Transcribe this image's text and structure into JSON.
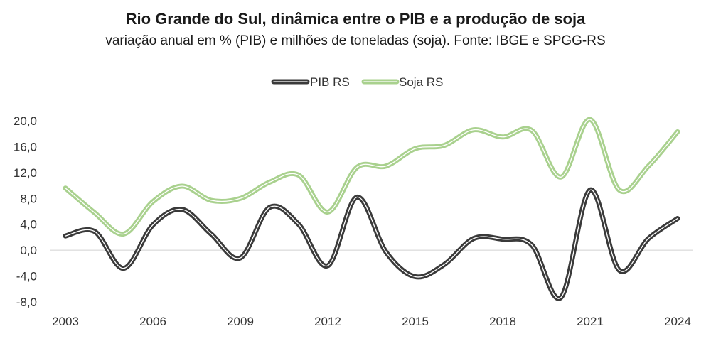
{
  "chart_data": {
    "type": "line",
    "title": "Rio Grande do Sul, dinâmica entre o PIB e a produção de soja",
    "subtitle": "variação anual em % (PIB) e milhões de toneladas (soja). Fonte: IBGE e SPGG-RS",
    "x": [
      2003,
      2004,
      2005,
      2006,
      2007,
      2008,
      2009,
      2010,
      2011,
      2012,
      2013,
      2014,
      2015,
      2016,
      2017,
      2018,
      2019,
      2020,
      2021,
      2022,
      2023,
      2024
    ],
    "x_ticks": [
      "2003",
      "2006",
      "2009",
      "2012",
      "2015",
      "2018",
      "2021",
      "2024"
    ],
    "y_ticks": [
      "20,0",
      "16,0",
      "12,0",
      "8,0",
      "4,0",
      "0,0",
      "-4,0",
      "-8,0"
    ],
    "ylim": [
      -8,
      20
    ],
    "legend_position": "top",
    "series": [
      {
        "name": "PIB RS",
        "color": "#3a3a3a",
        "values": [
          2.2,
          2.9,
          -2.8,
          3.9,
          6.3,
          2.5,
          -1.2,
          6.6,
          4.0,
          -2.4,
          8.2,
          -0.3,
          -4.1,
          -2.2,
          1.8,
          1.7,
          0.8,
          -7.3,
          9.3,
          -3.1,
          1.8,
          4.9
        ]
      },
      {
        "name": "Soja RS",
        "color": "#a9d18e",
        "values": [
          9.6,
          5.8,
          2.5,
          7.5,
          9.9,
          7.7,
          8.0,
          10.5,
          11.6,
          5.9,
          12.8,
          13.0,
          15.7,
          16.2,
          18.6,
          17.5,
          18.5,
          11.3,
          20.2,
          9.3,
          13.0,
          18.3
        ]
      }
    ]
  }
}
